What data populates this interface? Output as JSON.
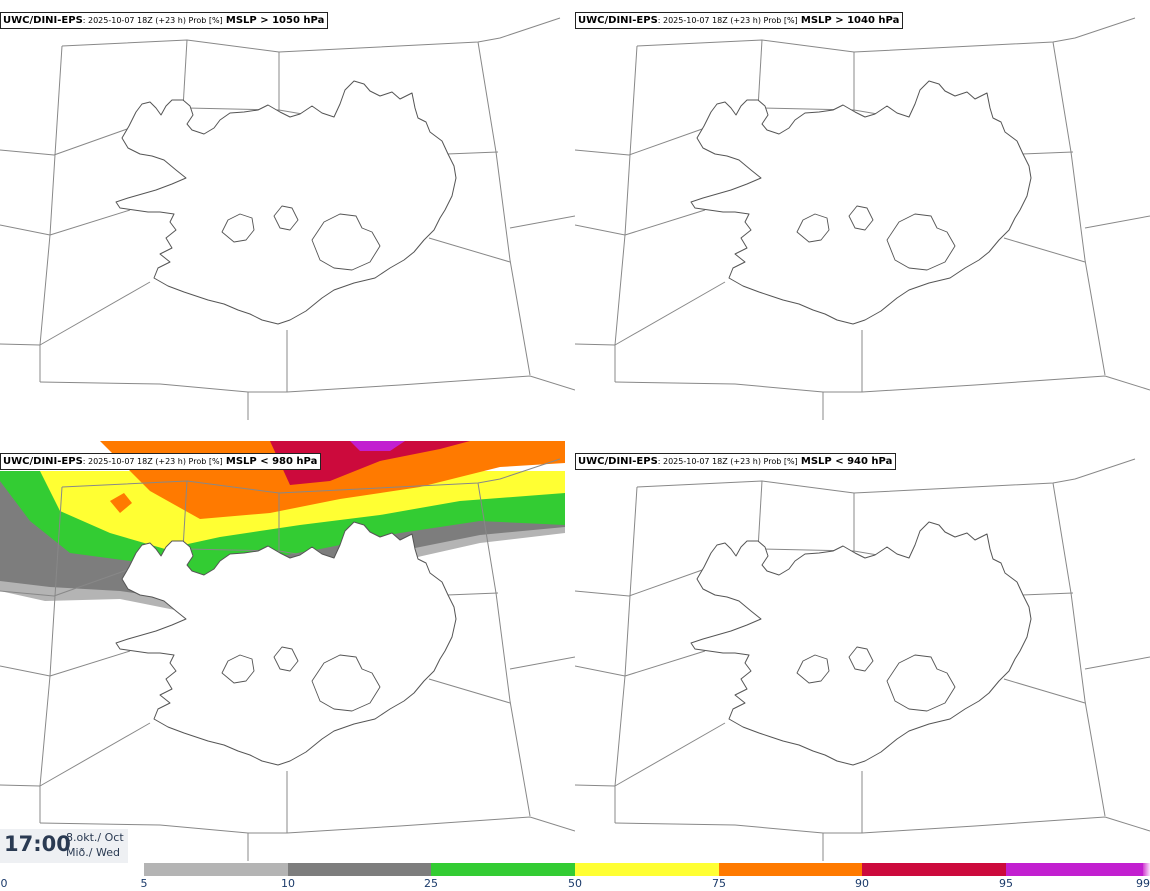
{
  "panels": [
    {
      "model": "UWC/DINI-EPS",
      "run": ": 2025-10-07 18Z (+23 h) Prob [%]",
      "param": "MSLP > 1050 hPa"
    },
    {
      "model": "UWC/DINI-EPS",
      "run": ": 2025-10-07 18Z (+23 h) Prob [%]",
      "param": "MSLP > 1040 hPa"
    },
    {
      "model": "UWC/DINI-EPS",
      "run": ": 2025-10-07 18Z (+23 h) Prob [%]",
      "param": "MSLP < 980 hPa"
    },
    {
      "model": "UWC/DINI-EPS",
      "run": ": 2025-10-07 18Z (+23 h) Prob [%]",
      "param": "MSLP < 940 hPa"
    }
  ],
  "valid_time": {
    "time": "17:00",
    "date": "8.okt./ Oct",
    "day": "Mið./ Wed"
  },
  "colorbar": {
    "ticks": [
      "0",
      "5",
      "10",
      "25",
      "50",
      "75",
      "90",
      "95",
      "99"
    ],
    "colors": [
      "#ffffff",
      "#b4b4b4",
      "#7d7d7d",
      "#33cc33",
      "#ffff33",
      "#ff7a00",
      "#cc0a3c",
      "#c21fd0",
      "#f0a0f0"
    ]
  },
  "colors": {
    "coast": "#555555",
    "grid": "#888888"
  }
}
